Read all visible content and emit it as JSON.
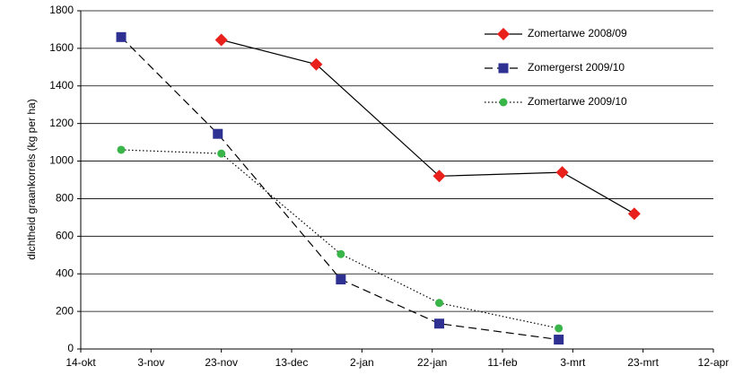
{
  "chart_data": {
    "type": "line",
    "y_label": "dichtheid graankorrels (kg per ha)",
    "xlim": [
      0,
      180
    ],
    "xticks": [
      {
        "value": 0,
        "label": "14-okt"
      },
      {
        "value": 20,
        "label": "3-nov"
      },
      {
        "value": 40,
        "label": "23-nov"
      },
      {
        "value": 60,
        "label": "13-dec"
      },
      {
        "value": 80,
        "label": "2-jan"
      },
      {
        "value": 100,
        "label": "22-jan"
      },
      {
        "value": 120,
        "label": "11-feb"
      },
      {
        "value": 140,
        "label": "3-mrt"
      },
      {
        "value": 160,
        "label": "23-mrt"
      },
      {
        "value": 180,
        "label": "12-apr"
      }
    ],
    "ylim": [
      0,
      1800
    ],
    "yticks": [
      0,
      200,
      400,
      600,
      800,
      1000,
      1200,
      1400,
      1600,
      1800
    ],
    "grid": true,
    "legend": "upper right",
    "series": [
      {
        "name": "Zomertarwe 2008/09",
        "color": "#e8211c",
        "line_style": "solid",
        "marker": "diamond",
        "x": [
          40,
          67,
          102,
          137,
          157.5
        ],
        "values": [
          1645,
          1515,
          920,
          940,
          720
        ]
      },
      {
        "name": "Zomergerst 2009/10",
        "color": "#2e3192",
        "line_style": "dashed",
        "marker": "square",
        "x": [
          11.5,
          39,
          74,
          102,
          136
        ],
        "values": [
          1660,
          1145,
          370,
          135,
          50
        ]
      },
      {
        "name": "Zomertarwe 2009/10",
        "color": "#39b54a",
        "line_style": "dotted",
        "marker": "circle",
        "x": [
          11.5,
          40,
          74,
          102,
          136
        ],
        "values": [
          1060,
          1040,
          505,
          245,
          110
        ]
      }
    ]
  }
}
